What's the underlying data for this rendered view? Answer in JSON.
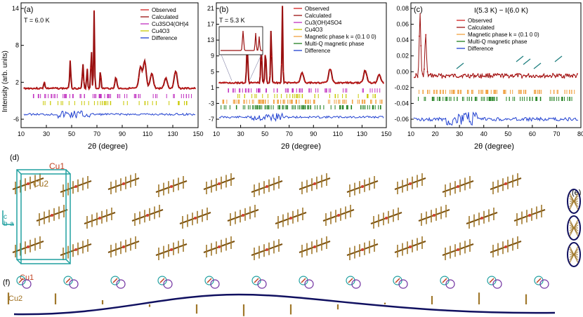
{
  "panel_a": {
    "letter": "(a)",
    "temperature": "T = 6.0 K",
    "ylabel": "Intensity (arb. units)",
    "xlabel": "2θ (degree)",
    "legend": [
      "Observed",
      "Calculated",
      "Cu3SO4(OH)4",
      "Cu4O3",
      "Difference"
    ],
    "yticks": [
      "14",
      "8",
      "2",
      "-6"
    ],
    "xticks": [
      "10",
      "30",
      "50",
      "70",
      "90",
      "110",
      "130",
      "150"
    ]
  },
  "panel_b": {
    "letter": "(b)",
    "temperature": "T = 5.3 K",
    "legend": [
      "Observed",
      "Calculated",
      "Cu3(OH)4SO4",
      "Cu4O3",
      "Magnetic phase k = (0.1 0 0)",
      "Multi-Q magnetic phase",
      "Difference"
    ],
    "yticks": [
      "21",
      "17",
      "13",
      "9",
      "5",
      "1",
      "-3",
      "-7"
    ],
    "xticks": [
      "10",
      "30",
      "50",
      "70",
      "90",
      "110",
      "130",
      "150"
    ],
    "xlabel": "2θ (degree)"
  },
  "panel_c": {
    "letter": "(c)",
    "title": "I(5.3 K) − I(6.0 K)",
    "legend": [
      "Observed",
      "Calculated",
      "Magnetic phase k = (0.1 0 0)",
      "Multi-Q magnetic phase",
      "Difference"
    ],
    "yticks": [
      "0.08",
      "0.06",
      "0.04",
      "0.02",
      "0.00",
      "-0.02",
      "-0.04",
      "-0.06"
    ],
    "xticks": [
      "10",
      "20",
      "30",
      "40",
      "50",
      "60",
      "70",
      "80"
    ],
    "xlabel": "2θ (degree)"
  },
  "panel_d": {
    "letter": "(d)",
    "cu1": "Cu1",
    "cu2": "Cu2",
    "axis_c": "c",
    "axis_b": "b",
    "axis_a": "a"
  },
  "panel_e": {
    "letter": "(e)"
  },
  "panel_f": {
    "letter": "(f)",
    "cu1": "Cu1",
    "cu2": "Cu2"
  },
  "colors": {
    "observed": "#d42020",
    "calculated": "#9a1010",
    "cu3so4": "#c030c0",
    "cu4o3": "#c8c800",
    "mag_k": "#f0a040",
    "multiq": "#208020",
    "difference": "#2040d0",
    "cell": "#20a0a0",
    "wave": "#101060",
    "spin": "#a0782c"
  }
}
